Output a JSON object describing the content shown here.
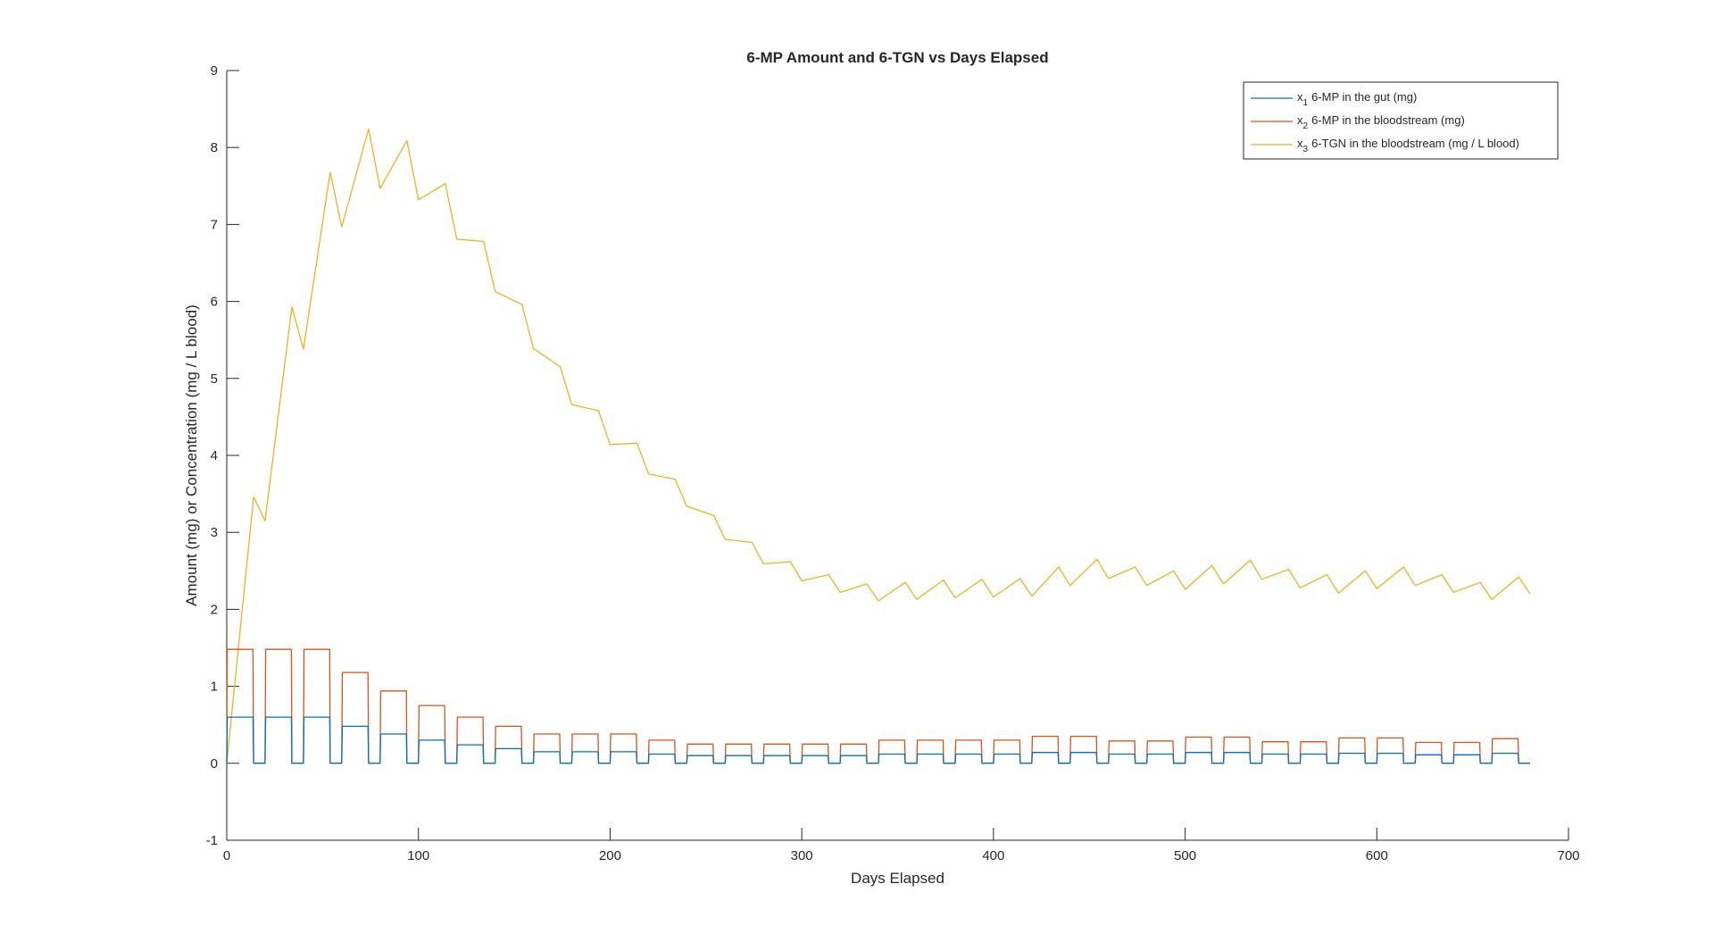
{
  "chart_data": {
    "type": "line",
    "title": "6-MP Amount and 6-TGN vs Days Elapsed",
    "xlabel": "Days Elapsed",
    "ylabel": "Amount (mg) or Concentration (mg / L blood)",
    "xlim": [
      0,
      700
    ],
    "ylim": [
      -1,
      9
    ],
    "xticks": [
      0,
      100,
      200,
      300,
      400,
      500,
      600,
      700
    ],
    "yticks": [
      -1,
      0,
      1,
      2,
      3,
      4,
      5,
      6,
      7,
      8,
      9
    ],
    "grid": false,
    "legend_position": "top-right",
    "dose_cycle": {
      "on_days": 14,
      "off_days": 6,
      "period_days": 20,
      "end_day": 680
    },
    "series": [
      {
        "name": "6-MP in the gut (mg)",
        "legend_var": "x",
        "legend_sub": "1",
        "color": "#0072BD",
        "cycle_levels": [
          0.6,
          0.6,
          0.6,
          0.48,
          0.38,
          0.3,
          0.24,
          0.19,
          0.15,
          0.15,
          0.15,
          0.12,
          0.1,
          0.1,
          0.1,
          0.1,
          0.1,
          0.12,
          0.12,
          0.12,
          0.12,
          0.14,
          0.14,
          0.12,
          0.12,
          0.14,
          0.14,
          0.12,
          0.12,
          0.13,
          0.13,
          0.11,
          0.11,
          0.13
        ]
      },
      {
        "name": "6-MP in the bloodstream (mg)",
        "legend_var": "x",
        "legend_sub": "2",
        "color": "#D95319",
        "cycle_levels": [
          1.48,
          1.48,
          1.48,
          1.18,
          0.94,
          0.75,
          0.6,
          0.48,
          0.38,
          0.38,
          0.38,
          0.3,
          0.25,
          0.25,
          0.25,
          0.25,
          0.25,
          0.3,
          0.3,
          0.3,
          0.3,
          0.35,
          0.35,
          0.29,
          0.29,
          0.34,
          0.34,
          0.28,
          0.28,
          0.33,
          0.33,
          0.27,
          0.27,
          0.32
        ]
      },
      {
        "name": "6-TGN in the bloodstream (mg / L blood)",
        "legend_var": "x",
        "legend_sub": "3",
        "color": "#EDB120",
        "x": [
          0,
          14,
          20,
          34,
          40,
          54,
          60,
          74,
          80,
          94,
          100,
          114,
          120,
          134,
          140,
          154,
          160,
          174,
          180,
          194,
          200,
          214,
          220,
          234,
          240,
          254,
          260,
          274,
          280,
          294,
          300,
          314,
          320,
          334,
          340,
          354,
          360,
          374,
          380,
          394,
          400,
          414,
          420,
          434,
          440,
          454,
          460,
          474,
          480,
          494,
          500,
          514,
          520,
          534,
          540,
          554,
          560,
          574,
          580,
          594,
          600,
          614,
          620,
          634,
          640,
          654,
          660,
          674,
          680
        ],
        "values": [
          0,
          3.46,
          3.15,
          5.93,
          5.38,
          7.68,
          6.97,
          8.24,
          7.47,
          8.09,
          7.32,
          7.53,
          6.81,
          6.78,
          6.13,
          5.96,
          5.39,
          5.15,
          4.66,
          4.58,
          4.14,
          4.16,
          3.76,
          3.69,
          3.34,
          3.22,
          2.91,
          2.87,
          2.59,
          2.62,
          2.37,
          2.45,
          2.22,
          2.33,
          2.11,
          2.35,
          2.13,
          2.38,
          2.15,
          2.39,
          2.16,
          2.4,
          2.17,
          2.55,
          2.31,
          2.65,
          2.4,
          2.55,
          2.31,
          2.5,
          2.26,
          2.57,
          2.33,
          2.64,
          2.39,
          2.52,
          2.28,
          2.45,
          2.21,
          2.5,
          2.27,
          2.55,
          2.31,
          2.45,
          2.22,
          2.35,
          2.13,
          2.42,
          2.2
        ]
      }
    ]
  }
}
